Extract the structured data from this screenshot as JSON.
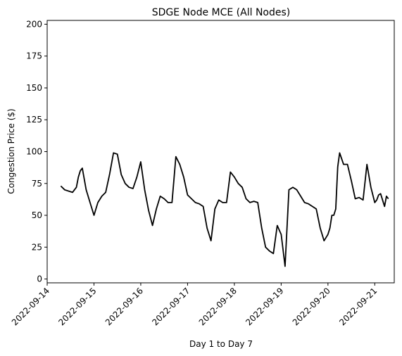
{
  "chart_data": {
    "type": "line",
    "title": "SDGE Node MCE (All Nodes)",
    "xlabel": "Day 1 to Day 7",
    "ylabel": "Congestion Price ($)",
    "xlim": [
      "2022-09-14T00:00",
      "2022-09-21T10:00"
    ],
    "ylim": [
      -3,
      203
    ],
    "xticks": [
      "2022-09-14",
      "2022-09-15",
      "2022-09-16",
      "2022-09-17",
      "2022-09-18",
      "2022-09-19",
      "2022-09-20",
      "2022-09-21"
    ],
    "yticks": [
      0,
      25,
      50,
      75,
      100,
      125,
      150,
      175,
      200
    ],
    "grid": false,
    "series": [
      {
        "color": "#000000",
        "x": [
          "2022-09-14T07:00",
          "2022-09-14T09:00",
          "2022-09-14T11:00",
          "2022-09-14T13:00",
          "2022-09-14T15:00",
          "2022-09-14T16:00",
          "2022-09-14T17:00",
          "2022-09-14T18:00",
          "2022-09-14T20:00",
          "2022-09-14T22:00",
          "2022-09-15T00:00",
          "2022-09-15T02:00",
          "2022-09-15T04:00",
          "2022-09-15T06:00",
          "2022-09-15T08:00",
          "2022-09-15T10:00",
          "2022-09-15T12:00",
          "2022-09-15T14:00",
          "2022-09-15T16:00",
          "2022-09-15T18:00",
          "2022-09-15T20:00",
          "2022-09-15T22:00",
          "2022-09-16T00:00",
          "2022-09-16T02:00",
          "2022-09-16T04:00",
          "2022-09-16T06:00",
          "2022-09-16T08:00",
          "2022-09-16T10:00",
          "2022-09-16T12:00",
          "2022-09-16T14:00",
          "2022-09-16T16:00",
          "2022-09-16T18:00",
          "2022-09-16T20:00",
          "2022-09-16T22:00",
          "2022-09-17T00:00",
          "2022-09-17T02:00",
          "2022-09-17T04:00",
          "2022-09-17T06:00",
          "2022-09-17T08:00",
          "2022-09-17T10:00",
          "2022-09-17T12:00",
          "2022-09-17T14:00",
          "2022-09-17T16:00",
          "2022-09-17T18:00",
          "2022-09-17T20:00",
          "2022-09-17T22:00",
          "2022-09-18T00:00",
          "2022-09-18T02:00",
          "2022-09-18T04:00",
          "2022-09-18T06:00",
          "2022-09-18T08:00",
          "2022-09-18T10:00",
          "2022-09-18T12:00",
          "2022-09-18T14:00",
          "2022-09-18T16:00",
          "2022-09-18T18:00",
          "2022-09-18T20:00",
          "2022-09-18T22:00",
          "2022-09-19T00:00",
          "2022-09-19T02:00",
          "2022-09-19T04:00",
          "2022-09-19T06:00",
          "2022-09-19T08:00",
          "2022-09-19T10:00",
          "2022-09-19T12:00",
          "2022-09-19T14:00",
          "2022-09-19T16:00",
          "2022-09-19T18:00",
          "2022-09-19T20:00",
          "2022-09-19T22:00",
          "2022-09-20T00:00",
          "2022-09-20T01:00",
          "2022-09-20T02:00",
          "2022-09-20T03:00",
          "2022-09-20T04:00",
          "2022-09-20T05:00",
          "2022-09-20T06:00",
          "2022-09-20T08:00",
          "2022-09-20T10:00",
          "2022-09-20T12:00",
          "2022-09-20T14:00",
          "2022-09-20T16:00",
          "2022-09-20T18:00",
          "2022-09-20T20:00",
          "2022-09-20T22:00",
          "2022-09-21T00:00",
          "2022-09-21T01:00",
          "2022-09-21T02:00",
          "2022-09-21T03:00",
          "2022-09-21T04:00",
          "2022-09-21T05:00",
          "2022-09-21T06:00",
          "2022-09-21T07:00"
        ],
        "y": [
          73,
          70,
          69,
          68,
          72,
          80,
          85,
          87,
          70,
          60,
          50,
          60,
          65,
          68,
          82,
          99,
          98,
          82,
          75,
          72,
          71,
          80,
          92,
          70,
          54,
          42,
          55,
          65,
          63,
          60,
          60,
          96,
          90,
          80,
          66,
          63,
          60,
          59,
          57,
          40,
          30,
          55,
          62,
          60,
          60,
          84,
          80,
          75,
          72,
          63,
          60,
          61,
          60,
          40,
          25,
          22,
          20,
          42,
          35,
          10,
          70,
          72,
          70,
          65,
          60,
          59,
          57,
          55,
          40,
          30,
          35,
          40,
          50,
          50,
          55,
          88,
          99,
          90,
          90,
          77,
          63,
          64,
          62,
          90,
          72,
          60,
          62,
          66,
          67,
          62,
          57,
          65,
          63
        ]
      }
    ]
  }
}
